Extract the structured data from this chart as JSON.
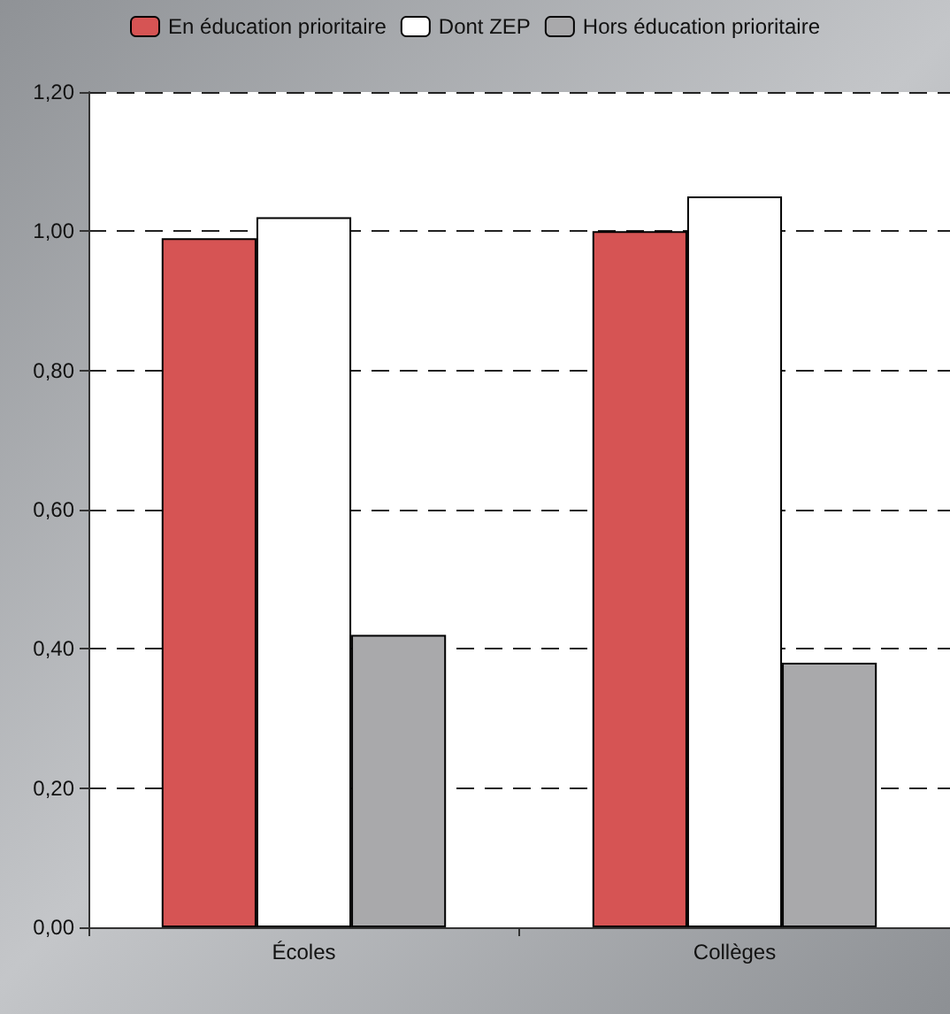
{
  "chart_data": {
    "type": "bar",
    "categories": [
      "Écoles",
      "Collèges"
    ],
    "series": [
      {
        "name": "En éducation prioritaire",
        "color": "#d65454",
        "values": [
          0.99,
          1.0
        ]
      },
      {
        "name": "Dont ZEP",
        "color": "#ffffff",
        "values": [
          1.02,
          1.05
        ]
      },
      {
        "name": "Hors éducation prioritaire",
        "color": "#a9a9ab",
        "values": [
          0.42,
          0.38
        ]
      }
    ],
    "ylim": [
      0,
      1.2
    ],
    "yticks": [
      {
        "value": 0,
        "label": "0,00"
      },
      {
        "value": 0.2,
        "label": "0,20"
      },
      {
        "value": 0.4,
        "label": "0,40"
      },
      {
        "value": 0.6,
        "label": "0,60"
      },
      {
        "value": 0.8,
        "label": "0,80"
      },
      {
        "value": 1.0,
        "label": "1,00"
      },
      {
        "value": 1.2,
        "label": "1,20"
      }
    ],
    "grid": "y",
    "legend": "top"
  }
}
